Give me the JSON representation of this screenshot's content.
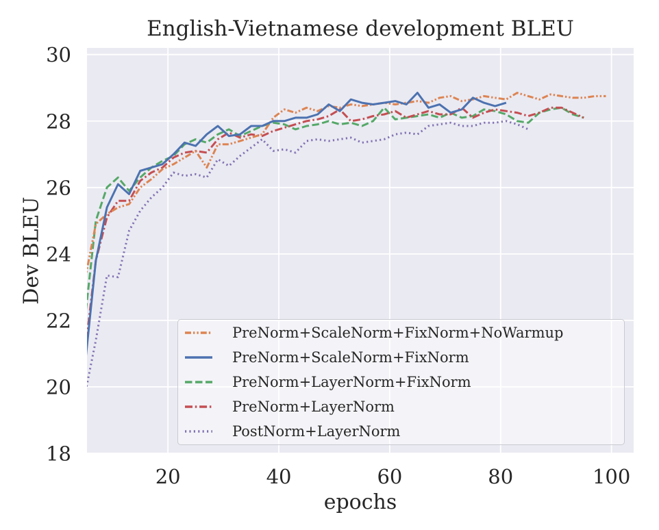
{
  "chart_data": {
    "type": "line",
    "title": "English-Vietnamese development BLEU",
    "xlabel": "epochs",
    "ylabel": "Dev BLEU",
    "xlim": [
      5.4,
      104
    ],
    "ylim": [
      18,
      30.2
    ],
    "xticks": [
      20,
      40,
      60,
      80,
      100
    ],
    "yticks": [
      18,
      20,
      22,
      24,
      26,
      28,
      30
    ],
    "grid": true,
    "background_color": "#eaeaf2",
    "grid_color": "#ffffff",
    "text_color": "#262626",
    "legend_position": "lower right inside axes",
    "series": [
      {
        "name": "PreNorm+ScaleNorm+FixNorm+NoWarmup",
        "color": "#dd8452",
        "linestyle": "dashdotdot",
        "dash": "9 3 2.4 3 2.4 3",
        "x": [
          5,
          7,
          9,
          11,
          13,
          15,
          17,
          19,
          21,
          23,
          25,
          27,
          29,
          31,
          33,
          35,
          37,
          39,
          41,
          43,
          45,
          47,
          49,
          51,
          53,
          55,
          57,
          59,
          61,
          63,
          65,
          67,
          69,
          71,
          73,
          75,
          77,
          79,
          81,
          83,
          85,
          87,
          89,
          91,
          93,
          95,
          97,
          99
        ],
        "y": [
          23.2,
          24.9,
          25.2,
          25.4,
          25.5,
          26.0,
          26.25,
          26.55,
          26.7,
          26.9,
          27.1,
          26.6,
          27.3,
          27.3,
          27.4,
          27.5,
          27.6,
          28.1,
          28.35,
          28.25,
          28.4,
          28.3,
          28.45,
          28.4,
          28.5,
          28.45,
          28.5,
          28.55,
          28.5,
          28.55,
          28.6,
          28.55,
          28.7,
          28.75,
          28.6,
          28.65,
          28.75,
          28.7,
          28.65,
          28.85,
          28.75,
          28.65,
          28.8,
          28.75,
          28.7,
          28.7,
          28.75,
          28.75
        ]
      },
      {
        "name": "PreNorm+ScaleNorm+FixNorm",
        "color": "#4c72b0",
        "linestyle": "solid",
        "dash": "",
        "x": [
          5,
          7,
          9,
          11,
          13,
          15,
          17,
          19,
          21,
          23,
          25,
          27,
          29,
          31,
          33,
          35,
          37,
          39,
          41,
          43,
          45,
          47,
          49,
          51,
          53,
          55,
          57,
          59,
          61,
          63,
          65,
          67,
          69,
          71,
          73,
          75,
          77,
          79,
          81
        ],
        "y": [
          20.6,
          23.8,
          25.4,
          26.1,
          25.8,
          26.5,
          26.6,
          26.7,
          27.0,
          27.35,
          27.25,
          27.6,
          27.85,
          27.55,
          27.6,
          27.85,
          27.85,
          28.0,
          28.0,
          28.1,
          28.1,
          28.2,
          28.5,
          28.3,
          28.65,
          28.55,
          28.5,
          28.55,
          28.6,
          28.5,
          28.85,
          28.4,
          28.5,
          28.25,
          28.35,
          28.7,
          28.55,
          28.45,
          28.55
        ]
      },
      {
        "name": "PreNorm+LayerNorm+FixNorm",
        "color": "#55a868",
        "linestyle": "dashed",
        "dash": "10.5 4.5",
        "x": [
          5,
          7,
          9,
          11,
          13,
          15,
          17,
          19,
          21,
          23,
          25,
          27,
          29,
          31,
          33,
          35,
          37,
          39,
          41,
          43,
          45,
          47,
          49,
          51,
          53,
          55,
          57,
          59,
          61,
          63,
          65,
          67,
          69,
          71,
          73,
          75,
          77,
          79,
          81,
          83,
          85,
          87,
          89,
          91,
          93,
          95
        ],
        "y": [
          22.0,
          25.0,
          26.0,
          26.3,
          25.9,
          26.3,
          26.6,
          26.8,
          26.95,
          27.3,
          27.45,
          27.35,
          27.6,
          27.75,
          27.55,
          27.7,
          27.85,
          27.95,
          27.9,
          27.75,
          27.85,
          27.9,
          28.0,
          27.9,
          27.95,
          27.85,
          28.0,
          28.4,
          28.05,
          28.1,
          28.15,
          28.2,
          28.1,
          28.25,
          28.1,
          28.15,
          28.35,
          28.3,
          28.2,
          28.0,
          27.95,
          28.25,
          28.35,
          28.4,
          28.2,
          28.1
        ]
      },
      {
        "name": "PreNorm+LayerNorm",
        "color": "#c44e52",
        "linestyle": "dashdot",
        "dash": "11 3.8 2.5 3.8",
        "x": [
          5,
          7,
          9,
          11,
          13,
          15,
          17,
          19,
          21,
          23,
          25,
          27,
          29,
          31,
          33,
          35,
          37,
          39,
          41,
          43,
          45,
          47,
          49,
          51,
          53,
          55,
          57,
          59,
          61,
          63,
          65,
          67,
          69,
          71,
          73,
          75,
          77,
          79,
          81,
          83,
          85,
          87,
          89,
          91,
          93,
          95
        ],
        "y": [
          21.0,
          23.8,
          25.1,
          25.6,
          25.6,
          26.2,
          26.45,
          26.6,
          26.9,
          27.05,
          27.1,
          27.05,
          27.45,
          27.65,
          27.5,
          27.6,
          27.55,
          27.7,
          27.8,
          27.9,
          28.0,
          28.05,
          28.15,
          28.35,
          28.0,
          28.05,
          28.15,
          28.2,
          28.3,
          28.1,
          28.2,
          28.3,
          28.2,
          28.2,
          28.4,
          28.1,
          28.25,
          28.35,
          28.3,
          28.25,
          28.15,
          28.25,
          28.4,
          28.4,
          28.25,
          28.1
        ]
      },
      {
        "name": "PostNorm+LayerNorm",
        "color": "#8172b3",
        "linestyle": "dotted",
        "dash": "2.2 4.2",
        "x": [
          5,
          7,
          9,
          11,
          13,
          15,
          17,
          19,
          21,
          23,
          25,
          27,
          29,
          31,
          33,
          35,
          37,
          39,
          41,
          43,
          45,
          47,
          49,
          51,
          53,
          55,
          57,
          59,
          61,
          63,
          65,
          67,
          69,
          71,
          73,
          75,
          77,
          79,
          81,
          83,
          85
        ],
        "y": [
          19.75,
          21.4,
          23.35,
          23.3,
          24.7,
          25.3,
          25.7,
          26.0,
          26.45,
          26.35,
          26.4,
          26.3,
          26.85,
          26.65,
          26.95,
          27.2,
          27.45,
          27.1,
          27.15,
          27.05,
          27.4,
          27.45,
          27.4,
          27.45,
          27.5,
          27.35,
          27.4,
          27.45,
          27.6,
          27.65,
          27.6,
          27.85,
          27.9,
          27.95,
          27.85,
          27.85,
          27.95,
          27.95,
          28.0,
          27.9,
          27.75
        ]
      }
    ]
  }
}
